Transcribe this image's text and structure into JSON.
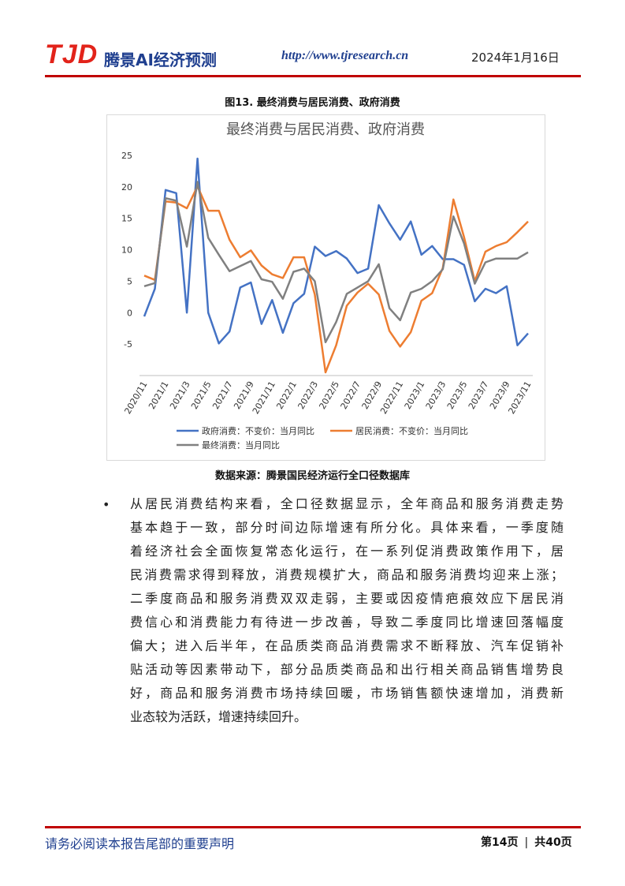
{
  "header": {
    "logo": "TJD",
    "brand": "腾景AI经济预测",
    "url": "http://www.tjresearch.cn",
    "date": "2024年1月16日"
  },
  "figure": {
    "caption": "图13. 最终消费与居民消费、政府消费",
    "source": "数据来源：腾景国民经济运行全口径数据库"
  },
  "chart_data": {
    "type": "line",
    "title": "最终消费与居民消费、政府消费",
    "categories": [
      "2020/11",
      null,
      "2021/1",
      null,
      "2021/3",
      null,
      "2021/5",
      null,
      "2021/7",
      null,
      "2021/9",
      null,
      "2021/11",
      null,
      "2022/1",
      null,
      "2022/3",
      null,
      "2022/5",
      null,
      "2022/7",
      null,
      "2022/9",
      null,
      "2022/11",
      null,
      "2023/1",
      null,
      "2023/3",
      null,
      "2023/5",
      null,
      "2023/7",
      null,
      "2023/9",
      null,
      "2023/11"
    ],
    "series": [
      {
        "name": "政府消费：不变价：当月同比",
        "color": "#4472c4",
        "values": [
          -0.6,
          3.8,
          19.5,
          19,
          0,
          24.5,
          0,
          -4.9,
          -3,
          4,
          4.8,
          -1.8,
          2,
          -3.2,
          1.5,
          3,
          10.5,
          9,
          9.8,
          8.6,
          6.3,
          7,
          17.1,
          14.2,
          11.6,
          14.5,
          9.2,
          10.6,
          8.5,
          8.5,
          7.6,
          1.8,
          3.8,
          3.1,
          4.2,
          -5.2,
          -3.3
        ]
      },
      {
        "name": "居民消费：不变价：当月同比",
        "color": "#ed7d31",
        "values": [
          5.9,
          5.2,
          17.7,
          17.5,
          16.6,
          20.1,
          16.2,
          16.2,
          11.6,
          8.8,
          9.9,
          7.5,
          6.1,
          5.5,
          8.8,
          8.8,
          2.9,
          -9.5,
          -5.2,
          1.1,
          3.2,
          4.6,
          2.9,
          -2.9,
          -5.4,
          -3.1,
          1.9,
          3.1,
          7.1,
          18,
          12,
          5,
          9.7,
          10.6,
          11.2,
          12.8,
          14.5
        ]
      },
      {
        "name": "最终消费：当月同比",
        "color": "#808080",
        "values": [
          4.2,
          4.7,
          18.2,
          17.8,
          10.5,
          20.8,
          11.9,
          9.2,
          6.6,
          7.4,
          8.2,
          5.3,
          4.9,
          2.2,
          6.5,
          7,
          5,
          -4.7,
          -1.5,
          3,
          4,
          5,
          7.7,
          0.7,
          -1.2,
          3.2,
          3.8,
          5,
          6.9,
          15.3,
          11,
          4.6,
          8,
          8.6,
          8.6,
          8.6,
          9.6
        ]
      }
    ],
    "ylim": [
      -10,
      25
    ],
    "yticks": [
      -5,
      0,
      5,
      10,
      15,
      20,
      25
    ],
    "grid": false,
    "legend": "bottom"
  },
  "body": {
    "bullet": "•",
    "lines": [
      "从居民消费结构来看，全口径数据显示，全年商品和服务消费走势",
      "基本趋于一致，部分时间边际增速有所分化。具体来看，一季度随",
      "着经济社会全面恢复常态化运行，在一系列促消费政策作用下，居",
      "民消费需求得到释放，消费规模扩大，商品和服务消费均迎来上涨；",
      "二季度商品和服务消费双双走弱，主要或因疫情疤痕效应下居民消",
      "费信心和消费能力有待进一步改善，导致二季度同比增速回落幅度",
      "偏大；进入后半年，在品质类商品消费需求不断释放、汽车促销补",
      "贴活动等因素带动下，部分品质类商品和出行相关商品销售增势良",
      "好，商品和服务消费市场持续回暖，市场销售额快速增加，消费新",
      "业态较为活跃，增速持续回升。"
    ]
  },
  "footer": {
    "notice": "请务必阅读本报告尾部的重要声明",
    "page": "第14页",
    "total": "共40页"
  }
}
